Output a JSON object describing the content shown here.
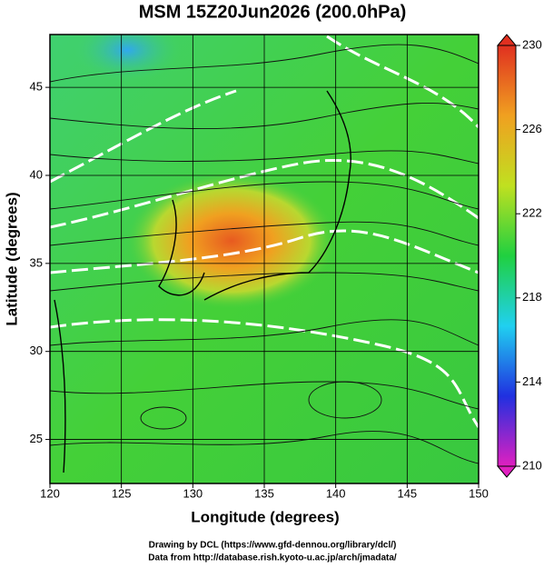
{
  "chart_data": {
    "type": "map",
    "title": "MSM 15Z20Jun2026 (200.0hPa)",
    "xlabel": "Longitude (degrees)",
    "ylabel": "Latitude  (degrees)",
    "xlim": [
      120,
      150
    ],
    "xticks": [
      120,
      125,
      130,
      135,
      140,
      145,
      150
    ],
    "ylim": [
      22.5,
      48
    ],
    "yticks": [
      25,
      30,
      35,
      40,
      45
    ],
    "grid": true,
    "colorbar": {
      "lim": [
        210,
        230
      ],
      "ticks": [
        210,
        214,
        218,
        222,
        226,
        230
      ],
      "colors": [
        "#e020c0",
        "#2030e0",
        "#20d0f0",
        "#20d040",
        "#c0e020",
        "#f0a020",
        "#e03020"
      ]
    },
    "footer": [
      "Drawing by DCL (https://www.gfd-dennou.org/library/dcl/)",
      "Data from http://database.rish.kyoto-u.ac.jp/arch/jmadata/"
    ]
  }
}
